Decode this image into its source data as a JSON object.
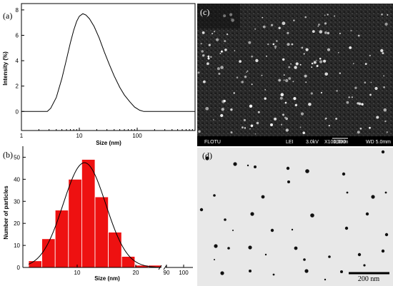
{
  "chart_data": [
    {
      "panel": "(a)",
      "type": "line",
      "xlabel": "Size (nm)",
      "ylabel": "Intensity (%)",
      "xscale": "log",
      "xlim": [
        1,
        1000
      ],
      "ylim": [
        -1.5,
        8.5
      ],
      "xticks": [
        "1",
        "10",
        "100"
      ],
      "yticks": [
        "0",
        "2",
        "4",
        "6",
        "8"
      ],
      "series": [
        {
          "x": [
            1,
            2,
            2.8,
            3.2,
            4,
            5,
            6,
            7,
            8,
            9,
            10,
            11.5,
            13,
            15,
            18,
            22,
            27,
            33,
            40,
            50,
            60,
            75,
            90,
            110,
            130,
            150,
            200,
            300,
            500,
            1000
          ],
          "y": [
            0,
            0,
            0,
            0.25,
            1.1,
            2.6,
            4.1,
            5.4,
            6.4,
            7.1,
            7.5,
            7.7,
            7.6,
            7.3,
            6.7,
            5.8,
            4.7,
            3.7,
            2.8,
            1.9,
            1.3,
            0.75,
            0.35,
            0.1,
            0,
            0,
            0,
            0,
            0,
            0
          ]
        }
      ]
    },
    {
      "panel": "(b)",
      "type": "bar",
      "xlabel": "Size (nm)",
      "ylabel": "Number of particles",
      "ylim": [
        0,
        55
      ],
      "yticks": [
        "0",
        "10",
        "20",
        "30",
        "40",
        "50"
      ],
      "xticks": [
        "10",
        "20",
        "90",
        "100"
      ],
      "axis_break": true,
      "bar_color": "#ee1111",
      "values": [
        3,
        13,
        26,
        40,
        49,
        32,
        16,
        5,
        1,
        1
      ],
      "fit_curve": "gaussian"
    }
  ],
  "images": {
    "c": {
      "label": "(c)",
      "info_bar": {
        "left": "FLOTU",
        "items": [
          "LEI",
          "3.0kV",
          "X100,000",
          "100nm",
          "WD 5.0mm"
        ]
      }
    },
    "d": {
      "label": "(d)",
      "scale_text": "200 nm"
    }
  }
}
